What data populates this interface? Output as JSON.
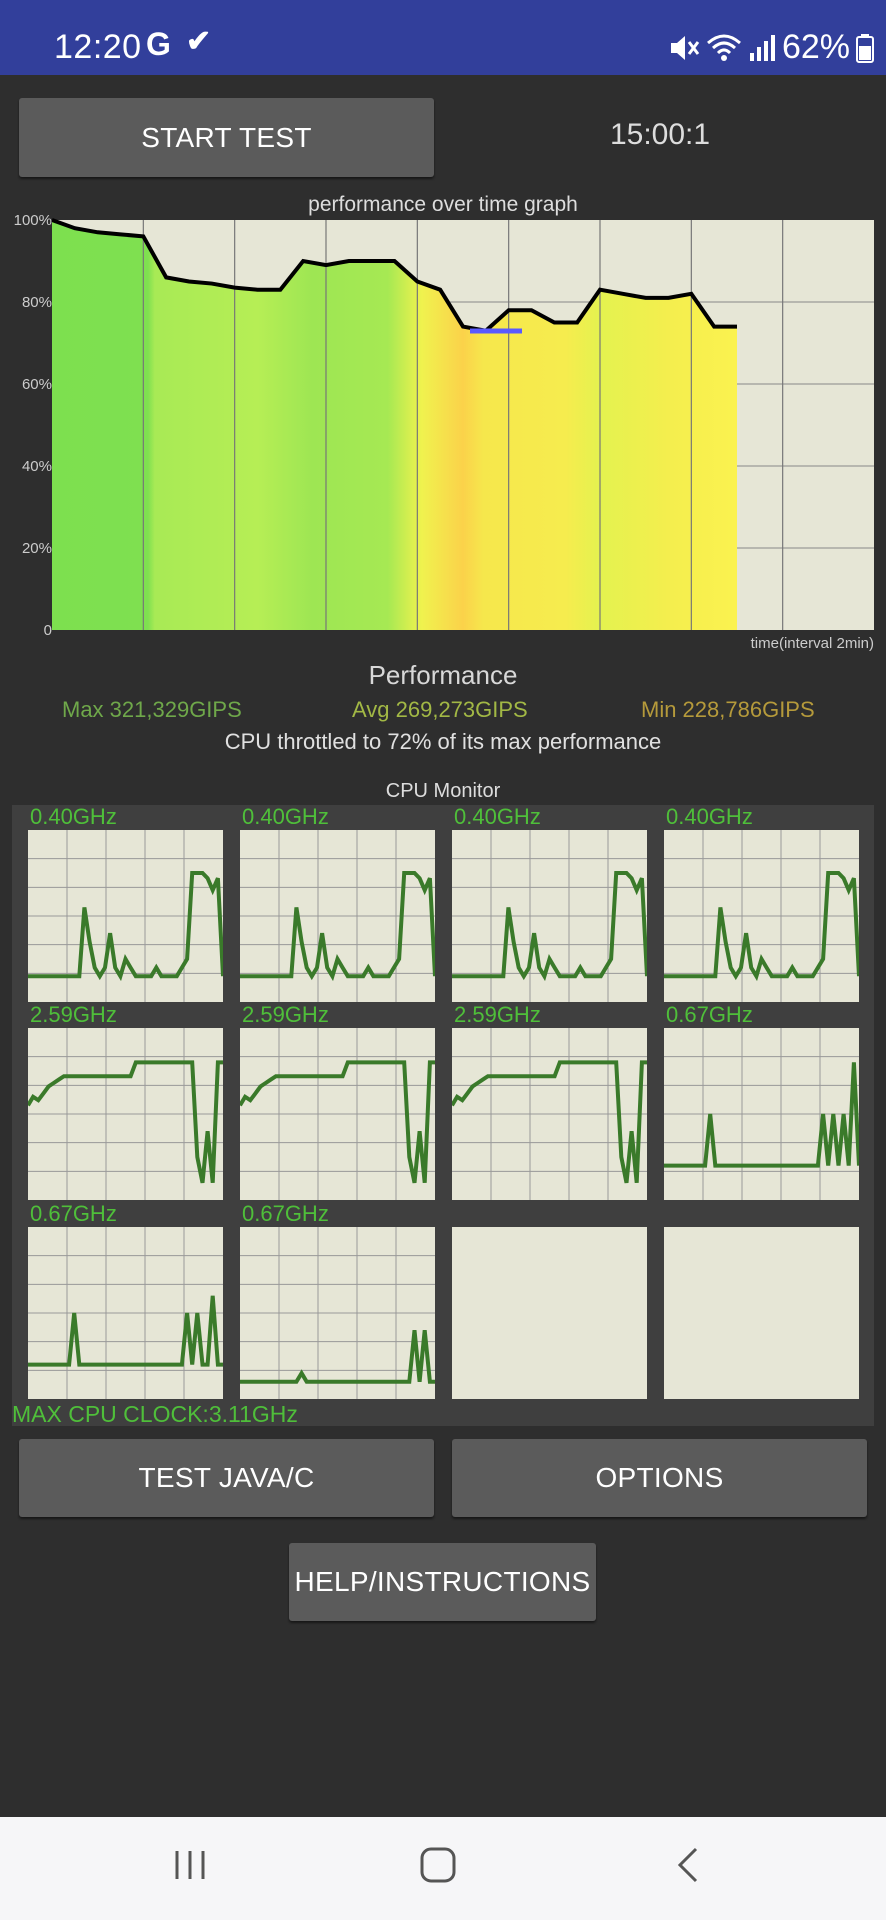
{
  "status_bar": {
    "time": "12:20",
    "icons_left": [
      "google-g-icon",
      "check-icon"
    ],
    "icons_right": [
      "mute-icon",
      "wifi-icon",
      "signal-icon",
      "battery-icon"
    ],
    "battery": "62%",
    "g_letter": "G"
  },
  "controls": {
    "start_test": "START TEST",
    "timer": "15:00:1"
  },
  "perf_graph": {
    "title": "performance over time graph",
    "x_label": "time(interval 2min)",
    "y_ticks": [
      "100%",
      "80%",
      "60%",
      "40%",
      "20%",
      "0"
    ]
  },
  "chart_data": {
    "type": "area",
    "title": "performance over time graph",
    "xlabel": "time(interval 2min)",
    "ylabel": "",
    "ylim": [
      0,
      100
    ],
    "ytick_labels": [
      "0",
      "20%",
      "40%",
      "60%",
      "80%",
      "100%"
    ],
    "x_interval_minutes": 2,
    "grid": true,
    "x": [
      0,
      0.5,
      1,
      1.5,
      2,
      2.5,
      3,
      3.5,
      4,
      4.5,
      5,
      5.5,
      6,
      6.5,
      7,
      7.5,
      8,
      8.5,
      9,
      9.5,
      10,
      10.5,
      11,
      11.5,
      12,
      12.5,
      13,
      13.5,
      14,
      14.5,
      15
    ],
    "y": [
      100,
      98,
      97,
      96.5,
      96,
      86,
      85,
      84.5,
      83.5,
      83,
      83,
      90,
      89,
      90,
      90,
      90,
      85,
      83,
      74,
      73,
      78,
      78,
      75,
      75,
      83,
      82,
      81,
      81,
      82,
      74,
      74
    ]
  },
  "performance": {
    "heading": "Performance",
    "max": "Max 321,329GIPS",
    "avg": "Avg 269,273GIPS",
    "min": "Min 228,786GIPS",
    "throttle": "CPU throttled to 72% of its max performance",
    "colors": {
      "max": "#6fa84a",
      "avg": "#a2b845",
      "min": "#b59a3b"
    }
  },
  "cpu_monitor": {
    "title": "CPU Monitor",
    "max_clock": "MAX CPU CLOCK:3.11GHz",
    "line_color": "#3a7a2a",
    "cores": [
      {
        "label": "0.40GHz",
        "values": [
          0.15,
          0.15,
          0.15,
          0.15,
          0.15,
          0.15,
          0.15,
          0.15,
          0.15,
          0.15,
          0.15,
          0.55,
          0.35,
          0.2,
          0.15,
          0.2,
          0.4,
          0.2,
          0.15,
          0.25,
          0.2,
          0.15,
          0.15,
          0.15,
          0.15,
          0.2,
          0.15,
          0.15,
          0.15,
          0.15,
          0.2,
          0.25,
          0.75,
          0.75,
          0.75,
          0.72,
          0.65,
          0.72,
          0.15
        ]
      },
      {
        "label": "0.40GHz",
        "values": [
          0.15,
          0.15,
          0.15,
          0.15,
          0.15,
          0.15,
          0.15,
          0.15,
          0.15,
          0.15,
          0.15,
          0.55,
          0.35,
          0.2,
          0.15,
          0.2,
          0.4,
          0.2,
          0.15,
          0.25,
          0.2,
          0.15,
          0.15,
          0.15,
          0.15,
          0.2,
          0.15,
          0.15,
          0.15,
          0.15,
          0.2,
          0.25,
          0.75,
          0.75,
          0.75,
          0.72,
          0.65,
          0.72,
          0.15
        ]
      },
      {
        "label": "0.40GHz",
        "values": [
          0.15,
          0.15,
          0.15,
          0.15,
          0.15,
          0.15,
          0.15,
          0.15,
          0.15,
          0.15,
          0.15,
          0.55,
          0.35,
          0.2,
          0.15,
          0.2,
          0.4,
          0.2,
          0.15,
          0.25,
          0.2,
          0.15,
          0.15,
          0.15,
          0.15,
          0.2,
          0.15,
          0.15,
          0.15,
          0.15,
          0.2,
          0.25,
          0.75,
          0.75,
          0.75,
          0.72,
          0.65,
          0.72,
          0.15
        ]
      },
      {
        "label": "0.40GHz",
        "values": [
          0.15,
          0.15,
          0.15,
          0.15,
          0.15,
          0.15,
          0.15,
          0.15,
          0.15,
          0.15,
          0.15,
          0.55,
          0.35,
          0.2,
          0.15,
          0.2,
          0.4,
          0.2,
          0.15,
          0.25,
          0.2,
          0.15,
          0.15,
          0.15,
          0.15,
          0.2,
          0.15,
          0.15,
          0.15,
          0.15,
          0.2,
          0.25,
          0.75,
          0.75,
          0.75,
          0.72,
          0.65,
          0.72,
          0.15
        ]
      },
      {
        "label": "2.59GHz",
        "values": [
          0.55,
          0.6,
          0.58,
          0.62,
          0.66,
          0.68,
          0.7,
          0.72,
          0.72,
          0.72,
          0.72,
          0.72,
          0.72,
          0.72,
          0.72,
          0.72,
          0.72,
          0.72,
          0.72,
          0.72,
          0.72,
          0.8,
          0.8,
          0.8,
          0.8,
          0.8,
          0.8,
          0.8,
          0.8,
          0.8,
          0.8,
          0.8,
          0.8,
          0.25,
          0.1,
          0.4,
          0.1,
          0.8,
          0.8
        ]
      },
      {
        "label": "2.59GHz",
        "values": [
          0.55,
          0.6,
          0.58,
          0.62,
          0.66,
          0.68,
          0.7,
          0.72,
          0.72,
          0.72,
          0.72,
          0.72,
          0.72,
          0.72,
          0.72,
          0.72,
          0.72,
          0.72,
          0.72,
          0.72,
          0.72,
          0.8,
          0.8,
          0.8,
          0.8,
          0.8,
          0.8,
          0.8,
          0.8,
          0.8,
          0.8,
          0.8,
          0.8,
          0.25,
          0.1,
          0.4,
          0.1,
          0.8,
          0.8
        ]
      },
      {
        "label": "2.59GHz",
        "values": [
          0.55,
          0.6,
          0.58,
          0.62,
          0.66,
          0.68,
          0.7,
          0.72,
          0.72,
          0.72,
          0.72,
          0.72,
          0.72,
          0.72,
          0.72,
          0.72,
          0.72,
          0.72,
          0.72,
          0.72,
          0.72,
          0.8,
          0.8,
          0.8,
          0.8,
          0.8,
          0.8,
          0.8,
          0.8,
          0.8,
          0.8,
          0.8,
          0.8,
          0.25,
          0.1,
          0.4,
          0.1,
          0.8,
          0.8
        ]
      },
      {
        "label": "0.67GHz",
        "values": [
          0.2,
          0.2,
          0.2,
          0.2,
          0.2,
          0.2,
          0.2,
          0.2,
          0.2,
          0.5,
          0.2,
          0.2,
          0.2,
          0.2,
          0.2,
          0.2,
          0.2,
          0.2,
          0.2,
          0.2,
          0.2,
          0.2,
          0.2,
          0.2,
          0.2,
          0.2,
          0.2,
          0.2,
          0.2,
          0.2,
          0.2,
          0.5,
          0.2,
          0.5,
          0.2,
          0.5,
          0.2,
          0.8,
          0.2
        ]
      },
      {
        "label": "0.67GHz",
        "values": [
          0.2,
          0.2,
          0.2,
          0.2,
          0.2,
          0.2,
          0.2,
          0.2,
          0.2,
          0.5,
          0.2,
          0.2,
          0.2,
          0.2,
          0.2,
          0.2,
          0.2,
          0.2,
          0.2,
          0.2,
          0.2,
          0.2,
          0.2,
          0.2,
          0.2,
          0.2,
          0.2,
          0.2,
          0.2,
          0.2,
          0.2,
          0.5,
          0.2,
          0.5,
          0.2,
          0.2,
          0.6,
          0.2,
          0.2
        ]
      },
      {
        "label": "0.67GHz",
        "values": [
          0.1,
          0.1,
          0.1,
          0.1,
          0.1,
          0.1,
          0.1,
          0.1,
          0.1,
          0.1,
          0.1,
          0.1,
          0.15,
          0.1,
          0.1,
          0.1,
          0.1,
          0.1,
          0.1,
          0.1,
          0.1,
          0.1,
          0.1,
          0.1,
          0.1,
          0.1,
          0.1,
          0.1,
          0.1,
          0.1,
          0.1,
          0.1,
          0.1,
          0.1,
          0.4,
          0.1,
          0.4,
          0.1,
          0.1
        ]
      },
      {
        "label": "",
        "values": []
      },
      {
        "label": "",
        "values": []
      }
    ]
  },
  "buttons": {
    "test_java": "TEST JAVA/C",
    "options": "OPTIONS",
    "help": "HELP/INSTRUCTIONS"
  },
  "nav": {
    "recents": "recents-icon",
    "home": "home-icon",
    "back": "back-icon"
  }
}
